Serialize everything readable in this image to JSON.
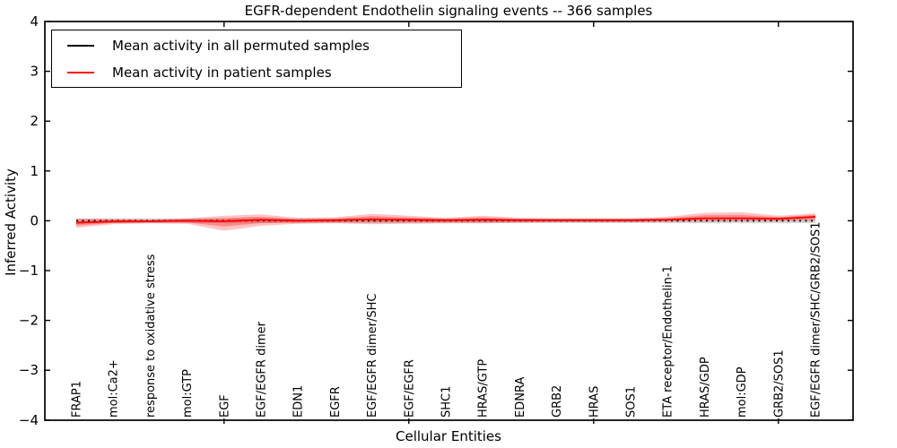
{
  "title": "EGFR-dependent Endothelin signaling events -- 366 samples",
  "legend": {
    "entries": [
      {
        "label": "Mean activity in all permuted samples",
        "color": "#000000"
      },
      {
        "label": "Mean activity in patient samples",
        "color": "#ff0000"
      }
    ]
  },
  "chart_data": {
    "type": "line",
    "title": "EGFR-dependent Endothelin signaling events -- 366 samples",
    "xlabel": "Cellular Entities",
    "ylabel": "Inferred Activity",
    "ylim": [
      -4,
      4
    ],
    "yticks": [
      4,
      3,
      2,
      1,
      0,
      -1,
      -2,
      -3,
      -4
    ],
    "ytick_labels": [
      "4",
      "3",
      "2",
      "1",
      "0",
      "−1",
      "−2",
      "−3",
      "−4"
    ],
    "grid": false,
    "legend_position": "upper left",
    "categories": [
      "FRAP1",
      "mol:Ca2+",
      "response to oxidative stress",
      "mol:GTP",
      "EGF",
      "EGF/EGFR dimer",
      "EDN1",
      "EGFR",
      "EGF/EGFR dimer/SHC",
      "EGF/EGFR",
      "SHC1",
      "HRAS/GTP",
      "EDNRA",
      "GRB2",
      "HRAS",
      "SOS1",
      "ETA receptor/Endothelin-1",
      "HRAS/GDP",
      "mol:GDP",
      "GRB2/SOS1",
      "EGF/EGFR dimer/SHC/GRB2/SOS1"
    ],
    "series": [
      {
        "name": "Mean activity in all permuted samples",
        "color": "#000000",
        "style": "dotted",
        "values": [
          0,
          0,
          0,
          0,
          0,
          0,
          0,
          0,
          0,
          0,
          0,
          0,
          0,
          0,
          0,
          0,
          0,
          0,
          0,
          0,
          0
        ]
      },
      {
        "name": "Mean activity in patient samples",
        "color": "#ff0000",
        "style": "solid",
        "values": [
          -0.04,
          -0.015,
          -0.01,
          0.0,
          -0.01,
          0.02,
          0.0,
          0.01,
          0.03,
          0.02,
          0.01,
          0.02,
          0.01,
          0.01,
          0.01,
          0.01,
          0.02,
          0.05,
          0.05,
          0.04,
          0.08
        ]
      }
    ],
    "bands": [
      {
        "name": "permuted-samples-range",
        "color": "rgba(110,110,110,0.30)",
        "lo": [
          -0.045,
          -0.045,
          -0.045,
          -0.045,
          -0.045,
          -0.045,
          -0.045,
          -0.045,
          -0.045,
          -0.045,
          -0.045,
          -0.045,
          -0.045,
          -0.045,
          -0.045,
          -0.045,
          -0.045,
          -0.045,
          -0.045,
          -0.045,
          -0.045
        ],
        "hi": [
          0.045,
          0.045,
          0.045,
          0.045,
          0.045,
          0.045,
          0.045,
          0.045,
          0.045,
          0.045,
          0.045,
          0.045,
          0.045,
          0.045,
          0.045,
          0.045,
          0.045,
          0.045,
          0.045,
          0.045,
          0.045
        ]
      },
      {
        "name": "patient-samples-outer-band",
        "color": "rgba(255,40,40,0.28)",
        "lo": [
          -0.14,
          -0.07,
          -0.05,
          -0.06,
          -0.2,
          -0.1,
          -0.06,
          -0.05,
          -0.07,
          -0.06,
          -0.05,
          -0.05,
          -0.04,
          -0.03,
          -0.03,
          -0.03,
          -0.02,
          -0.02,
          -0.01,
          -0.01,
          0.0
        ],
        "hi": [
          0.05,
          0.04,
          0.03,
          0.05,
          0.1,
          0.13,
          0.06,
          0.07,
          0.14,
          0.1,
          0.06,
          0.1,
          0.06,
          0.05,
          0.05,
          0.05,
          0.08,
          0.16,
          0.17,
          0.1,
          0.15
        ]
      },
      {
        "name": "patient-samples-inner-band",
        "color": "rgba(255,40,40,0.38)",
        "lo": [
          -0.095,
          -0.045,
          -0.032,
          -0.033,
          -0.115,
          -0.046,
          -0.033,
          -0.023,
          -0.025,
          -0.024,
          -0.023,
          -0.019,
          -0.018,
          -0.012,
          -0.012,
          -0.012,
          -0.002,
          0.011,
          0.017,
          0.012,
          0.036
        ],
        "hi": [
          0.01,
          0.015,
          0.012,
          0.028,
          0.051,
          0.081,
          0.033,
          0.043,
          0.091,
          0.064,
          0.038,
          0.064,
          0.038,
          0.032,
          0.032,
          0.032,
          0.053,
          0.111,
          0.116,
          0.073,
          0.119
        ]
      }
    ]
  }
}
